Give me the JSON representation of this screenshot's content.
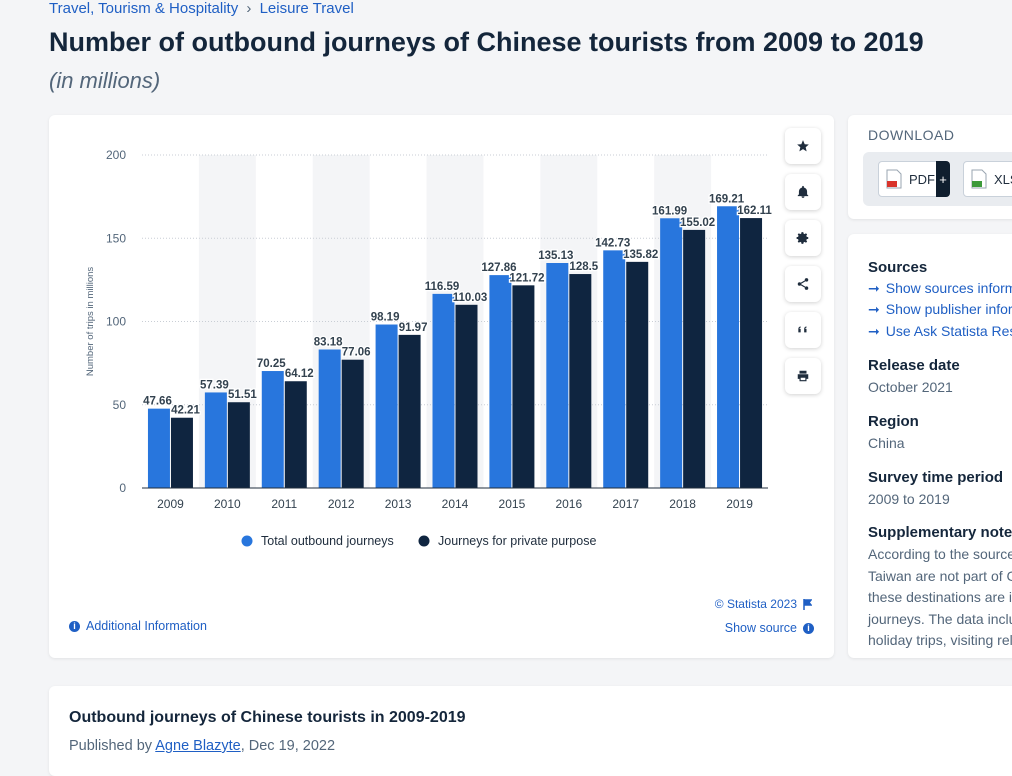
{
  "breadcrumb": {
    "items": [
      "Travel, Tourism & Hospitality",
      "Leisure Travel"
    ],
    "separator": "›"
  },
  "title": "Number of outbound journeys of Chinese tourists from 2009 to 2019",
  "subtitle": "(in millions)",
  "chart_data": {
    "type": "bar",
    "categories": [
      "2009",
      "2010",
      "2011",
      "2012",
      "2013",
      "2014",
      "2015",
      "2016",
      "2017",
      "2018",
      "2019"
    ],
    "series": [
      {
        "name": "Total outbound journeys",
        "color": "#2876dd",
        "values": [
          47.66,
          57.39,
          70.25,
          83.18,
          98.19,
          116.59,
          127.86,
          135.13,
          142.73,
          161.99,
          169.21
        ]
      },
      {
        "name": "Journeys for private purpose",
        "color": "#0f2540",
        "values": [
          42.21,
          51.51,
          64.12,
          77.06,
          91.97,
          110.03,
          121.72,
          128.5,
          135.82,
          155.02,
          162.11
        ]
      }
    ],
    "ylabel": "Number of trips in millions",
    "xlabel": "",
    "ylim": [
      0,
      200
    ],
    "yticks": [
      0,
      50,
      100,
      150,
      200
    ],
    "grid": true,
    "legend_position": "bottom-center"
  },
  "chart_footer": {
    "additional_info": "Additional Information",
    "copyright": "© Statista 2023",
    "show_source": "Show source"
  },
  "toolbar": [
    "star-icon",
    "bell-icon",
    "gear-icon",
    "share-icon",
    "quote-icon",
    "print-icon"
  ],
  "download": {
    "label": "DOWNLOAD",
    "pdf": "PDF",
    "plus": "+",
    "xls": "XLS"
  },
  "meta": {
    "sources_heading": "Sources",
    "source_links": [
      "Show sources information",
      "Show publisher information",
      "Use Ask Statista Research Service"
    ],
    "release_heading": "Release date",
    "release_value": "October 2021",
    "region_heading": "Region",
    "region_value": "China",
    "survey_heading": "Survey time period",
    "survey_value": "2009 to 2019",
    "supp_heading": "Supplementary notes",
    "supp_lines": [
      "According to the source, Hong Kong, Macau and",
      "Taiwan are not part of China. Travels to",
      "these destinations are included in outbound",
      "journeys. The data includes business trips,",
      "holiday trips, visiting relatives and friends."
    ]
  },
  "description": {
    "title": "Outbound journeys of Chinese tourists in 2009-2019",
    "published_prefix": "Published by",
    "author": "Agne Blazyte",
    "date": ", Dec 19, 2022"
  }
}
